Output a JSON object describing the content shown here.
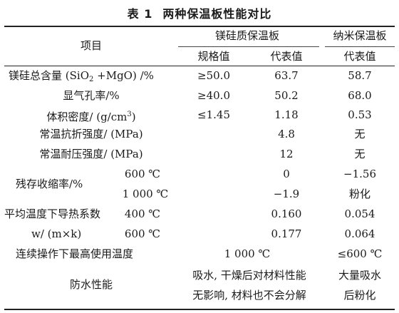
{
  "caption": {
    "number": "表 1",
    "title": "两种保温板性能对比"
  },
  "header": {
    "item": "项目",
    "group_mgsi": "镁硅质保温板",
    "group_nano": "纳米保温板",
    "spec_value": "规格值",
    "rep_value_mgsi": "代表值",
    "rep_value_nano": "代表值"
  },
  "rows": {
    "sio2": {
      "label_pre": "镁硅总含量 (SiO",
      "label_sub": "2",
      "label_post": " +MgO) /%",
      "spec": "≥50.0",
      "mgsi": "63.7",
      "nano": "58.7"
    },
    "porosity": {
      "label": "显气孔率/%",
      "spec": "≥40.0",
      "mgsi": "50.2",
      "nano": "68.0"
    },
    "density": {
      "label_pre": "体积密度/ (g/cm",
      "label_sup": "3",
      "label_post": ")",
      "spec": "≤1.45",
      "mgsi": "1.18",
      "nano": "0.53"
    },
    "flexural": {
      "label": "常温抗折强度/ (MPa)",
      "mgsi": "4.8",
      "nano": "无"
    },
    "compressive": {
      "label": "常温耐压强度/ (MPa)",
      "mgsi": "12",
      "nano": "无"
    },
    "shrinkage": {
      "label": "残存收缩率/%",
      "t1": "600 ℃",
      "mgsi1": "0",
      "nano1": "−1.56",
      "t2": "1 000 ℃",
      "mgsi2": "−1.9",
      "nano2": "粉化"
    },
    "conductivity": {
      "label1": "平均温度下导热系数",
      "t1": "400 ℃",
      "mgsi1": "0.160",
      "nano1": "0.054",
      "label2": "w/ (m×k)",
      "t2": "600 ℃",
      "mgsi2": "0.177",
      "nano2": "0.064"
    },
    "max_temp": {
      "label": "连续操作下最高使用温度",
      "mgsi": "1 000 ℃",
      "nano": "≤600 ℃"
    },
    "waterproof": {
      "label": "防水性能",
      "mgsi_line1": "吸水, 干燥后对材料性能",
      "mgsi_line2": "无影响, 材料也不会分解",
      "nano_line1": "大量吸水",
      "nano_line2": "后粉化"
    }
  }
}
